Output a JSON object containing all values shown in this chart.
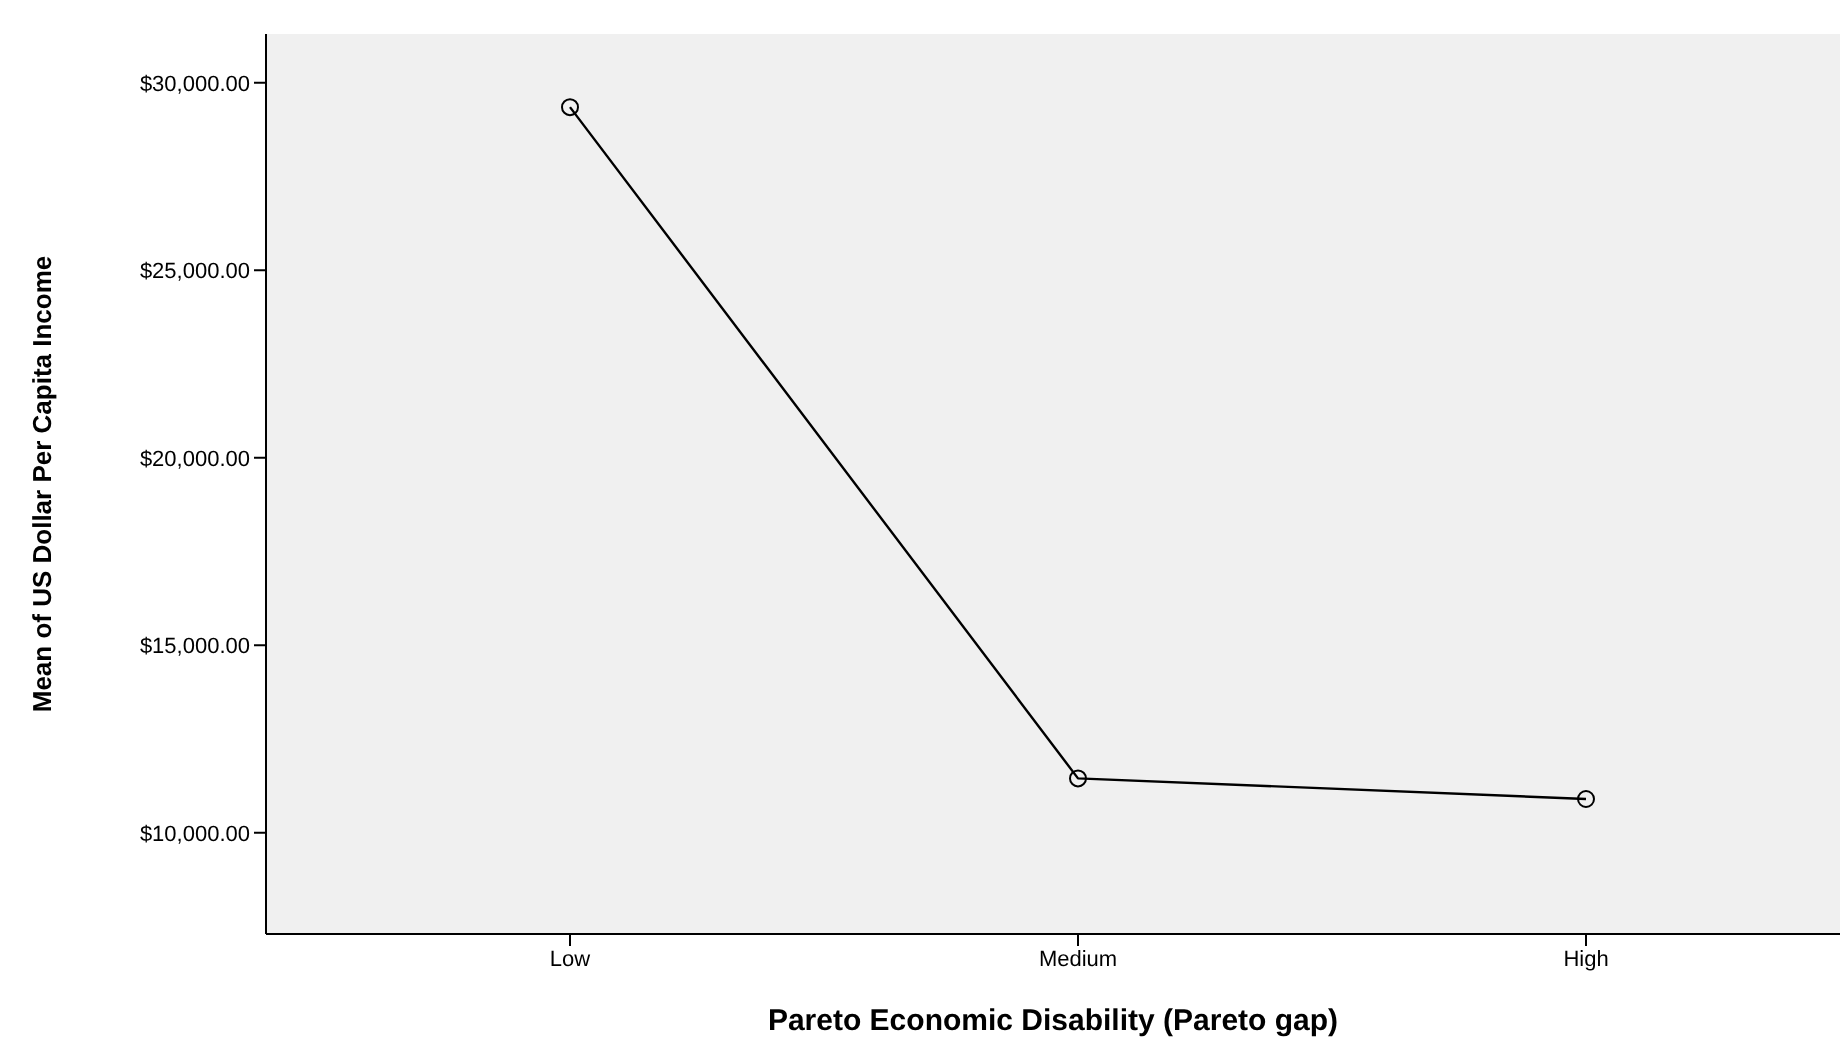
{
  "chart_data": {
    "type": "line",
    "xlabel": "Pareto Economic Disability (Pareto gap)",
    "ylabel": "Mean of US Dollar Per Capita Income",
    "categories": [
      "Low",
      "Medium",
      "High"
    ],
    "series": [
      {
        "color": "#000000",
        "values": [
          29350,
          11450,
          10900
        ]
      }
    ],
    "ylim": [
      7300,
      31300
    ],
    "yticks": [
      {
        "value": 10000,
        "label": "$10,000.00"
      },
      {
        "value": 15000,
        "label": "$15,000.00"
      },
      {
        "value": 20000,
        "label": "$20,000.00"
      },
      {
        "value": 25000,
        "label": "$25,000.00"
      },
      {
        "value": 30000,
        "label": "$30,000.00"
      }
    ],
    "marker": "circle",
    "line_style": "solid",
    "legend": false
  }
}
